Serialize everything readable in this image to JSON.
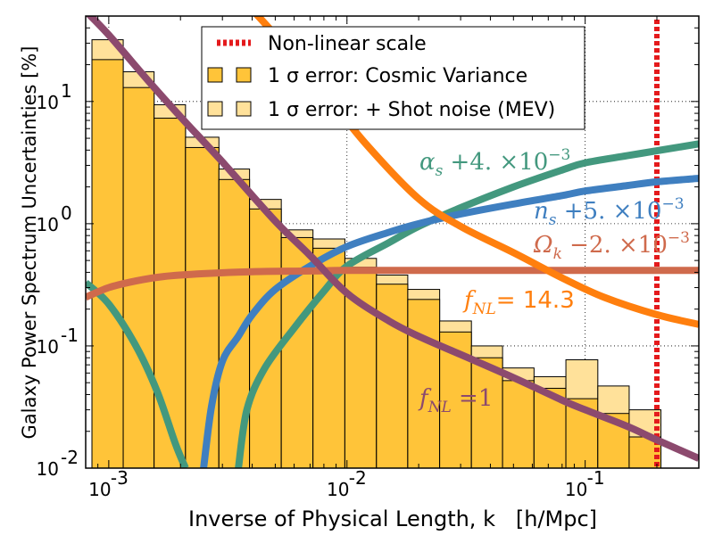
{
  "chart_data": {
    "type": "bar+line",
    "x_scale": "log",
    "y_scale": "log",
    "xlim": [
      0.0008,
      0.3
    ],
    "ylim": [
      0.01,
      50
    ],
    "ylabel": "Galaxy Power Spectrum Uncertainties [%]",
    "xlabel": "Inverse of Physical Length, k   [h/Mpc]",
    "x_ticks": [
      {
        "value": 0.001,
        "label": "10",
        "exp": "-3"
      },
      {
        "value": 0.01,
        "label": "10",
        "exp": "-2"
      },
      {
        "value": 0.1,
        "label": "10",
        "exp": "-1"
      }
    ],
    "y_ticks": [
      {
        "value": 0.01,
        "label": "10",
        "exp": "-2"
      },
      {
        "value": 0.1,
        "label": "10",
        "exp": "-1"
      },
      {
        "value": 1,
        "label": "10",
        "exp": "0"
      },
      {
        "value": 10,
        "label": "10",
        "exp": "1"
      }
    ],
    "bins": {
      "edges": [
        0.00085,
        0.00115,
        0.00155,
        0.0021,
        0.0029,
        0.0039,
        0.0053,
        0.0072,
        0.0098,
        0.0133,
        0.018,
        0.0245,
        0.0333,
        0.045,
        0.061,
        0.083,
        0.113,
        0.153,
        0.208
      ],
      "cosmic_variance": [
        22,
        13,
        7.3,
        4.2,
        2.3,
        1.32,
        0.77,
        0.63,
        0.44,
        0.32,
        0.24,
        0.13,
        0.08,
        0.052,
        0.045,
        0.037,
        0.028,
        0.018
      ],
      "shot_noise": [
        32,
        17.5,
        9.4,
        5.1,
        2.8,
        1.58,
        0.89,
        0.75,
        0.52,
        0.38,
        0.29,
        0.16,
        0.1,
        0.066,
        0.056,
        0.077,
        0.047,
        0.03
      ]
    },
    "nonlinear_k": 0.2,
    "series": [
      {
        "name": "f_NL = 14.3",
        "color": "#ff7f0e",
        "x": [
          0.0028,
          0.005,
          0.008,
          0.012,
          0.02,
          0.03,
          0.05,
          0.08,
          0.12,
          0.2,
          0.3
        ],
        "y": [
          120,
          35,
          12,
          4.5,
          1.6,
          0.95,
          0.58,
          0.36,
          0.25,
          0.18,
          0.15
        ]
      },
      {
        "name": "f_NL = 1",
        "color": "#8c4a6e",
        "x": [
          0.0008,
          0.001,
          0.0015,
          0.002,
          0.003,
          0.005,
          0.007,
          0.01,
          0.015,
          0.02,
          0.03,
          0.05,
          0.08,
          0.1,
          0.15,
          0.2,
          0.3
        ],
        "y": [
          55,
          35,
          14,
          7.5,
          3.2,
          1.05,
          0.55,
          0.27,
          0.16,
          0.12,
          0.085,
          0.055,
          0.036,
          0.03,
          0.022,
          0.017,
          0.012
        ]
      },
      {
        "name": "Omega_k -2e-3",
        "color": "#cf6a4c",
        "x": [
          0.0008,
          0.001,
          0.0013,
          0.0017,
          0.0025,
          0.004,
          0.007,
          0.01,
          0.02,
          0.05,
          0.1,
          0.3
        ],
        "y": [
          0.25,
          0.3,
          0.34,
          0.37,
          0.39,
          0.405,
          0.41,
          0.415,
          0.415,
          0.415,
          0.415,
          0.415
        ]
      },
      {
        "name": "n_s +5e-3",
        "color": "#3f7fc0",
        "x": [
          0.0025,
          0.0027,
          0.003,
          0.0035,
          0.004,
          0.005,
          0.007,
          0.01,
          0.015,
          0.02,
          0.03,
          0.05,
          0.08,
          0.1,
          0.15,
          0.2,
          0.3
        ],
        "y": [
          0.01,
          0.032,
          0.075,
          0.12,
          0.18,
          0.29,
          0.45,
          0.65,
          0.85,
          1.0,
          1.2,
          1.45,
          1.7,
          1.85,
          2.05,
          2.2,
          2.35
        ]
      },
      {
        "name": "alpha_s +4e-3",
        "color": "#43987e",
        "x": [
          0.0008,
          0.001,
          0.0013,
          0.0016,
          0.0019,
          0.0021,
          0.0035,
          0.0038,
          0.0045,
          0.006,
          0.008,
          0.01,
          0.015,
          0.02,
          0.03,
          0.05,
          0.08,
          0.1,
          0.15,
          0.2,
          0.3
        ],
        "y": [
          0.33,
          0.22,
          0.1,
          0.042,
          0.016,
          0.01,
          0.01,
          0.03,
          0.065,
          0.14,
          0.28,
          0.45,
          0.7,
          0.95,
          1.35,
          2.0,
          2.75,
          3.15,
          3.6,
          3.95,
          4.5
        ]
      }
    ],
    "legend": {
      "placement": "top-center",
      "items": [
        {
          "label": "Non-linear scale",
          "style": "dashed-line",
          "color": "#e41a1c"
        },
        {
          "label": "1 σ error:   Cosmic Variance",
          "style": "patch",
          "color": "#ffc439"
        },
        {
          "label": "1 σ error: + Shot noise (MEV)",
          "style": "patch",
          "color": "#ffe19a"
        }
      ]
    },
    "annotations": [
      {
        "id": "alpha",
        "sym": "α",
        "sub": "s",
        "rest": " +4. ×10",
        "exp": "−3",
        "color": "#43987e"
      },
      {
        "id": "ns",
        "sym": "n",
        "sub": "s",
        "rest": " +5. ×10",
        "exp": "−3",
        "color": "#3f7fc0"
      },
      {
        "id": "omega",
        "sym": "Ω",
        "sub": "k",
        "rest": " −2. ×10",
        "exp": "−3",
        "color": "#cf6a4c"
      },
      {
        "id": "fnl143",
        "sym": "f",
        "sub": "NL",
        "rest": "= 14.3",
        "exp": "",
        "color": "#ff7f0e"
      },
      {
        "id": "fnl1",
        "sym": "f",
        "sub": "NL",
        "rest": " =1",
        "exp": "",
        "color": "#8c4a6e"
      }
    ]
  }
}
